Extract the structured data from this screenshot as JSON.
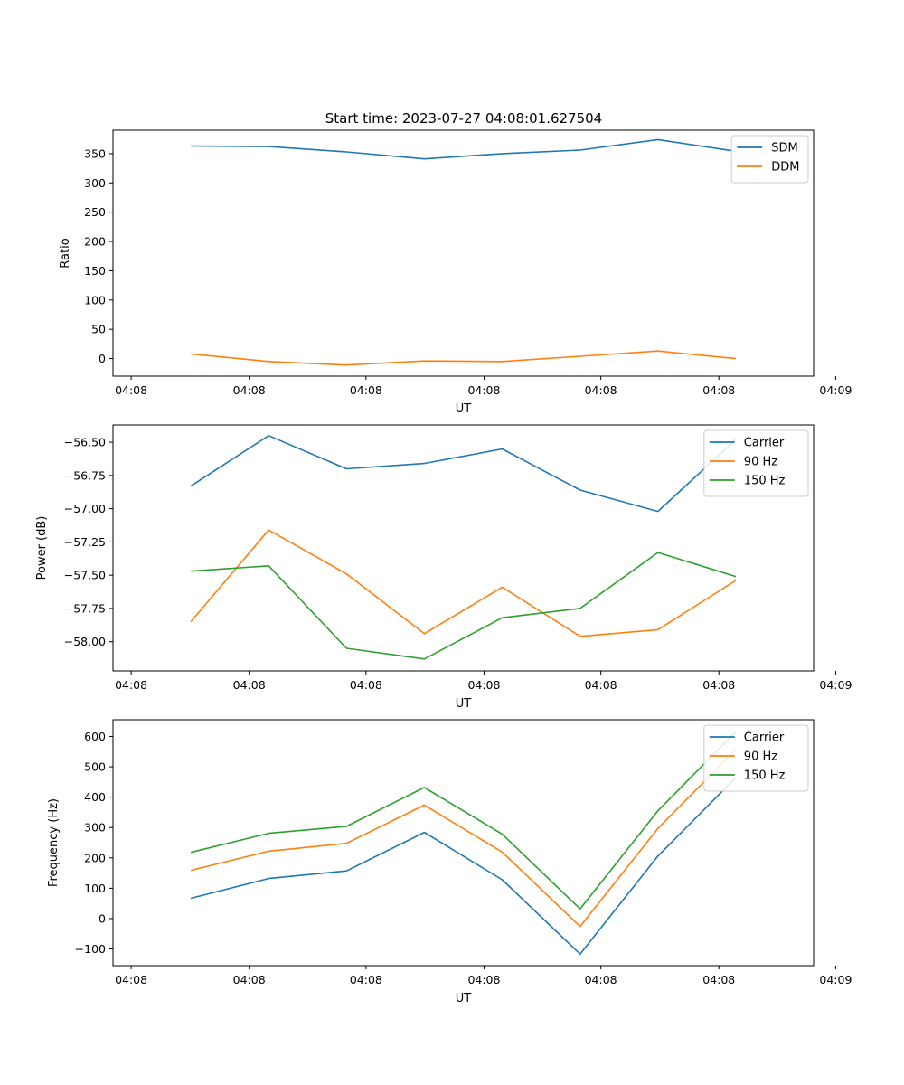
{
  "title": "Start time: 2023-07-27 04:08:01.627504",
  "colors": {
    "blue": "#1f77b4",
    "orange": "#ff7f0e",
    "green": "#2ca02c"
  },
  "chart_data": [
    {
      "type": "line",
      "title": "Start time: 2023-07-27 04:08:01.627504",
      "xlabel": "UT",
      "ylabel": "Ratio",
      "x": [
        0.6,
        1.2,
        1.8,
        2.4,
        3.0,
        3.6,
        4.2,
        4.8
      ],
      "xlim": [
        0,
        5.4
      ],
      "xticks": [
        0.14,
        1.05,
        1.95,
        2.86,
        3.76,
        4.67,
        5.57
      ],
      "xtick_labels": [
        "04:08",
        "04:08",
        "04:08",
        "04:08",
        "04:08",
        "04:08",
        "04:09"
      ],
      "ylim": [
        -30,
        390
      ],
      "yticks": [
        0,
        50,
        100,
        150,
        200,
        250,
        300,
        350
      ],
      "ytick_labels": [
        "0",
        "50",
        "100",
        "150",
        "200",
        "250",
        "300",
        "350"
      ],
      "legend_position": "top-right",
      "series": [
        {
          "name": "SDM",
          "color": "#1f77b4",
          "values": [
            363,
            362,
            353,
            341,
            350,
            356,
            374,
            354
          ]
        },
        {
          "name": "DDM",
          "color": "#ff7f0e",
          "values": [
            8,
            -5,
            -11,
            -4,
            -5,
            4,
            13,
            0
          ]
        }
      ]
    },
    {
      "type": "line",
      "title": "",
      "xlabel": "UT",
      "ylabel": "Power (dB)",
      "x": [
        0.6,
        1.2,
        1.8,
        2.4,
        3.0,
        3.6,
        4.2,
        4.8
      ],
      "xlim": [
        0,
        5.4
      ],
      "xticks": [
        0.14,
        1.05,
        1.95,
        2.86,
        3.76,
        4.67,
        5.57
      ],
      "xtick_labels": [
        "04:08",
        "04:08",
        "04:08",
        "04:08",
        "04:08",
        "04:08",
        "04:09"
      ],
      "ylim": [
        -58.22,
        -56.37
      ],
      "yticks": [
        -58.0,
        -57.75,
        -57.5,
        -57.25,
        -57.0,
        -56.75,
        -56.5
      ],
      "ytick_labels": [
        "−58.00",
        "−57.75",
        "−57.50",
        "−57.25",
        "−57.00",
        "−56.75",
        "−56.50"
      ],
      "legend_position": "top-right",
      "series": [
        {
          "name": "Carrier",
          "color": "#1f77b4",
          "values": [
            -56.83,
            -56.45,
            -56.7,
            -56.66,
            -56.55,
            -56.86,
            -57.02,
            -56.48
          ]
        },
        {
          "name": "90 Hz",
          "color": "#ff7f0e",
          "values": [
            -57.85,
            -57.16,
            -57.49,
            -57.94,
            -57.59,
            -57.96,
            -57.91,
            -57.54
          ]
        },
        {
          "name": "150 Hz",
          "color": "#2ca02c",
          "values": [
            -57.47,
            -57.43,
            -58.05,
            -58.13,
            -57.82,
            -57.75,
            -57.33,
            -57.51
          ]
        }
      ]
    },
    {
      "type": "line",
      "title": "",
      "xlabel": "UT",
      "ylabel": "Frequency (Hz)",
      "x": [
        0.6,
        1.2,
        1.8,
        2.4,
        3.0,
        3.6,
        4.2,
        4.8
      ],
      "xlim": [
        0,
        5.4
      ],
      "xticks": [
        0.14,
        1.05,
        1.95,
        2.86,
        3.76,
        4.67,
        5.57
      ],
      "xtick_labels": [
        "04:08",
        "04:08",
        "04:08",
        "04:08",
        "04:08",
        "04:08",
        "04:09"
      ],
      "ylim": [
        -155,
        655
      ],
      "yticks": [
        -100,
        0,
        100,
        200,
        300,
        400,
        500,
        600
      ],
      "ytick_labels": [
        "−100",
        "0",
        "100",
        "200",
        "300",
        "400",
        "500",
        "600"
      ],
      "legend_position": "top-right",
      "series": [
        {
          "name": "Carrier",
          "color": "#1f77b4",
          "values": [
            67,
            132,
            157,
            284,
            128,
            -117,
            206,
            464
          ]
        },
        {
          "name": "90 Hz",
          "color": "#ff7f0e",
          "values": [
            159,
            222,
            248,
            374,
            219,
            -26,
            297,
            556
          ]
        },
        {
          "name": "150 Hz",
          "color": "#2ca02c",
          "values": [
            218,
            281,
            304,
            432,
            278,
            32,
            355,
            615
          ]
        }
      ]
    }
  ]
}
